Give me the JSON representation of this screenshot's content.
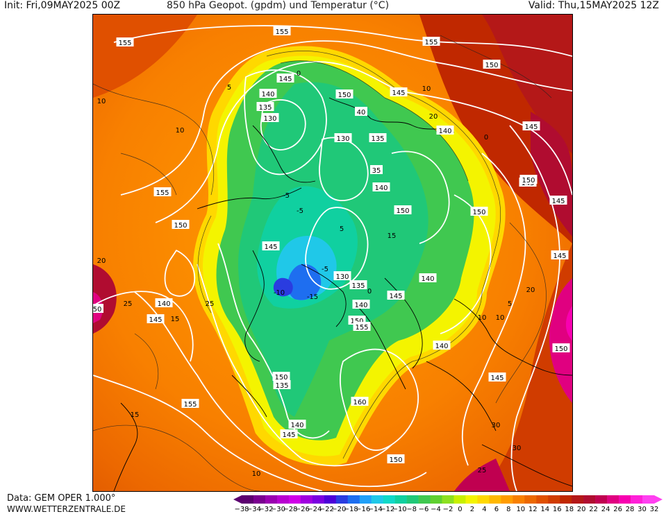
{
  "header": {
    "init": "Init: Fri,09MAY2025 00Z",
    "title": "850 hPa Geopot. (gpdm) und Temperatur (°C)",
    "valid": "Valid: Thu,15MAY2025 12Z"
  },
  "footer": {
    "data_source": "Data: GEM OPER 1.000°",
    "website": "WWW.WETTERZENTRALE.DE"
  },
  "legend": {
    "ticks": [
      "−38",
      "−34",
      "−32",
      "−30",
      "−28",
      "−26",
      "−24",
      "−22",
      "−20",
      "−18",
      "−16",
      "−14",
      "−12",
      "−10",
      "−8",
      "−6",
      "−4",
      "−2",
      "0",
      "2",
      "4",
      "6",
      "8",
      "10",
      "12",
      "14",
      "16",
      "18",
      "20",
      "22",
      "24",
      "26",
      "28",
      "30",
      "32"
    ],
    "colors": [
      "#5c0070",
      "#7a0090",
      "#9a00b0",
      "#b800d0",
      "#d000e8",
      "#a000e0",
      "#7a00e0",
      "#4c00d8",
      "#2a3ce0",
      "#1e6ef0",
      "#20a0f8",
      "#20c8e8",
      "#10d8c8",
      "#10d0a0",
      "#20c878",
      "#40c850",
      "#60d030",
      "#8ce020",
      "#c8f000",
      "#f4f400",
      "#ffd800",
      "#ffb800",
      "#ff9c00",
      "#f88000",
      "#ec6800",
      "#e05000",
      "#d03c00",
      "#c02800",
      "#b41818",
      "#b00c30",
      "#c00050",
      "#e00080",
      "#f800b0",
      "#ff20d8",
      "#ff40f0"
    ]
  },
  "map": {
    "height_labels": [
      {
        "text": "155"
      },
      {
        "text": "155"
      },
      {
        "text": "155"
      },
      {
        "text": "145"
      },
      {
        "text": "140"
      },
      {
        "text": "135"
      },
      {
        "text": "130"
      },
      {
        "text": "150"
      },
      {
        "text": "150"
      },
      {
        "text": "145"
      },
      {
        "text": "40"
      },
      {
        "text": "130"
      },
      {
        "text": "135"
      },
      {
        "text": "140"
      },
      {
        "text": "145"
      },
      {
        "text": "35"
      },
      {
        "text": "140"
      },
      {
        "text": "150"
      },
      {
        "text": "150"
      },
      {
        "text": "145"
      },
      {
        "text": "155"
      },
      {
        "text": "150"
      },
      {
        "text": "145"
      },
      {
        "text": "145"
      },
      {
        "text": "130"
      },
      {
        "text": "135"
      },
      {
        "text": "145"
      },
      {
        "text": "140"
      },
      {
        "text": "140"
      },
      {
        "text": "150"
      },
      {
        "text": "155"
      },
      {
        "text": "145"
      },
      {
        "text": "140"
      },
      {
        "text": "145"
      },
      {
        "text": "150"
      },
      {
        "text": "160"
      },
      {
        "text": "135"
      },
      {
        "text": "140"
      },
      {
        "text": "145"
      },
      {
        "text": "150"
      },
      {
        "text": "155"
      },
      {
        "text": "150"
      },
      {
        "text": "140"
      },
      {
        "text": "145"
      },
      {
        "text": "50"
      },
      {
        "text": "150"
      }
    ],
    "temp_labels": [
      "10",
      "10",
      "5",
      "0",
      "-5",
      "-10",
      "-15",
      "-5",
      "0",
      "5",
      "10",
      "20",
      "15",
      "20",
      "25",
      "15",
      "25",
      "10",
      "10",
      "15",
      "0",
      "5",
      "-5",
      "20",
      "25",
      "30",
      "30",
      "10"
    ]
  }
}
